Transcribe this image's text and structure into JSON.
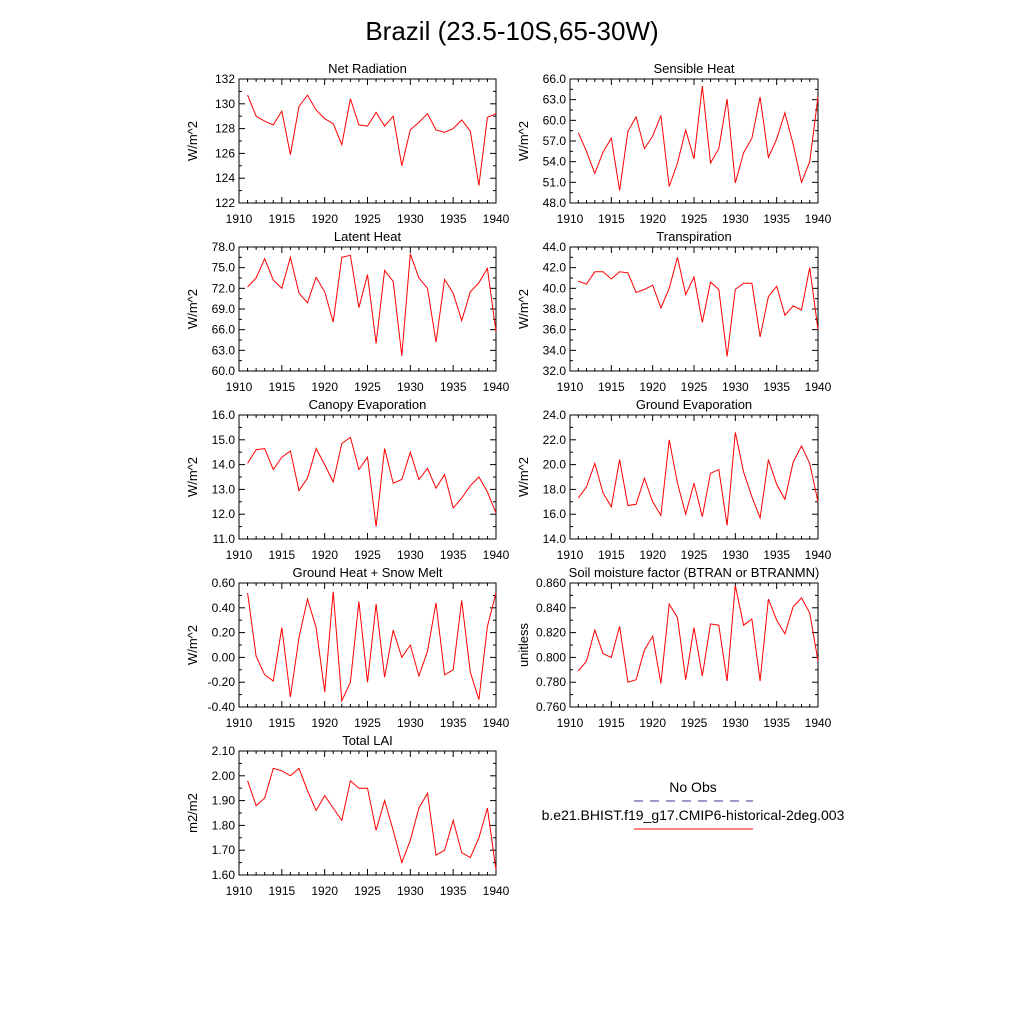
{
  "main_title": "Brazil (23.5-10S,65-30W)",
  "legend": {
    "items": [
      {
        "label": "No Obs",
        "color": "#3a3a9a",
        "dashed": true
      },
      {
        "label": "b.e21.BHIST.f19_g17.CMIP6-historical-2deg.003",
        "color": "#ff0000",
        "dashed": false
      }
    ]
  },
  "colors": {
    "series": "#ff0000",
    "axis": "#000000"
  },
  "chart_data": [
    {
      "type": "line",
      "title": "Net Radiation",
      "ylabel": "W/m^2",
      "xlim": [
        1910,
        1940
      ],
      "ylim": [
        122,
        132
      ],
      "xticks": [
        "1910",
        "1915",
        "1920",
        "1925",
        "1930",
        "1935",
        "1940"
      ],
      "yticks": [
        "122",
        "124",
        "126",
        "128",
        "130",
        "132"
      ],
      "x": [
        1911,
        1912,
        1913,
        1914,
        1915,
        1916,
        1917,
        1918,
        1919,
        1920,
        1921,
        1922,
        1923,
        1924,
        1925,
        1926,
        1927,
        1928,
        1929,
        1930,
        1931,
        1932,
        1933,
        1934,
        1935,
        1936,
        1937,
        1938,
        1939,
        1940
      ],
      "series": [
        {
          "values": [
            130.7,
            129.0,
            128.6,
            128.3,
            129.4,
            125.9,
            129.8,
            130.7,
            129.5,
            128.8,
            128.4,
            126.7,
            130.4,
            128.3,
            128.2,
            129.3,
            128.2,
            129.0,
            125.0,
            127.9,
            128.5,
            129.2,
            127.9,
            127.7,
            128.0,
            128.7,
            127.8,
            123.4,
            128.9,
            129.2
          ]
        }
      ]
    },
    {
      "type": "line",
      "title": "Sensible Heat",
      "ylabel": "W/m^2",
      "xlim": [
        1910,
        1940
      ],
      "ylim": [
        48,
        66
      ],
      "xticks": [
        "1910",
        "1915",
        "1920",
        "1925",
        "1930",
        "1935",
        "1940"
      ],
      "yticks": [
        "48.0",
        "51.0",
        "54.0",
        "57.0",
        "60.0",
        "63.0",
        "66.0"
      ],
      "x": [
        1911,
        1912,
        1913,
        1914,
        1915,
        1916,
        1917,
        1918,
        1919,
        1920,
        1921,
        1922,
        1923,
        1924,
        1925,
        1926,
        1927,
        1928,
        1929,
        1930,
        1931,
        1932,
        1933,
        1934,
        1935,
        1936,
        1937,
        1938,
        1939,
        1940
      ],
      "series": [
        {
          "values": [
            58.2,
            55.5,
            52.3,
            55.4,
            57.4,
            49.8,
            58.4,
            60.5,
            55.9,
            57.7,
            60.7,
            50.4,
            53.8,
            58.6,
            54.4,
            65.0,
            53.8,
            55.9,
            63.1,
            50.9,
            55.3,
            57.4,
            63.4,
            54.6,
            57.3,
            61.1,
            56.5,
            51.0,
            54.0,
            63.4
          ]
        }
      ]
    },
    {
      "type": "line",
      "title": "Latent Heat",
      "ylabel": "W/m^2",
      "xlim": [
        1910,
        1940
      ],
      "ylim": [
        60,
        78
      ],
      "xticks": [
        "1910",
        "1915",
        "1920",
        "1925",
        "1930",
        "1935",
        "1940"
      ],
      "yticks": [
        "60.0",
        "63.0",
        "66.0",
        "69.0",
        "72.0",
        "75.0",
        "78.0"
      ],
      "x": [
        1911,
        1912,
        1913,
        1914,
        1915,
        1916,
        1917,
        1918,
        1919,
        1920,
        1921,
        1922,
        1923,
        1924,
        1925,
        1926,
        1927,
        1928,
        1929,
        1930,
        1931,
        1932,
        1933,
        1934,
        1935,
        1936,
        1937,
        1938,
        1939,
        1940
      ],
      "series": [
        {
          "values": [
            72.2,
            73.5,
            76.3,
            73.2,
            72.0,
            76.5,
            71.3,
            69.9,
            73.6,
            71.5,
            67.1,
            76.5,
            76.8,
            69.2,
            74.0,
            64.0,
            74.6,
            73.0,
            62.2,
            77.0,
            73.5,
            72.0,
            64.2,
            73.3,
            71.3,
            67.3,
            71.5,
            72.8,
            74.9,
            65.7
          ]
        }
      ]
    },
    {
      "type": "line",
      "title": "Transpiration",
      "ylabel": "W/m^2",
      "xlim": [
        1910,
        1940
      ],
      "ylim": [
        32,
        44
      ],
      "xticks": [
        "1910",
        "1915",
        "1920",
        "1925",
        "1930",
        "1935",
        "1940"
      ],
      "yticks": [
        "32.0",
        "34.0",
        "36.0",
        "38.0",
        "40.0",
        "42.0",
        "44.0"
      ],
      "x": [
        1911,
        1912,
        1913,
        1914,
        1915,
        1916,
        1917,
        1918,
        1919,
        1920,
        1921,
        1922,
        1923,
        1924,
        1925,
        1926,
        1927,
        1928,
        1929,
        1930,
        1931,
        1932,
        1933,
        1934,
        1935,
        1936,
        1937,
        1938,
        1939,
        1940
      ],
      "series": [
        {
          "values": [
            40.7,
            40.4,
            41.6,
            41.6,
            40.9,
            41.6,
            41.5,
            39.6,
            39.9,
            40.3,
            38.1,
            40.0,
            43.0,
            39.4,
            41.1,
            36.7,
            40.6,
            39.9,
            33.4,
            39.9,
            40.5,
            40.5,
            35.3,
            39.2,
            40.2,
            37.4,
            38.3,
            37.9,
            42.0,
            36.0
          ]
        }
      ]
    },
    {
      "type": "line",
      "title": "Canopy Evaporation",
      "ylabel": "W/m^2",
      "xlim": [
        1910,
        1940
      ],
      "ylim": [
        11,
        16
      ],
      "xticks": [
        "1910",
        "1915",
        "1920",
        "1925",
        "1930",
        "1935",
        "1940"
      ],
      "yticks": [
        "11.0",
        "12.0",
        "13.0",
        "14.0",
        "15.0",
        "16.0"
      ],
      "x": [
        1911,
        1912,
        1913,
        1914,
        1915,
        1916,
        1917,
        1918,
        1919,
        1920,
        1921,
        1922,
        1923,
        1924,
        1925,
        1926,
        1927,
        1928,
        1929,
        1930,
        1931,
        1932,
        1933,
        1934,
        1935,
        1936,
        1937,
        1938,
        1939,
        1940
      ],
      "series": [
        {
          "values": [
            14.05,
            14.6,
            14.65,
            13.8,
            14.3,
            14.55,
            12.95,
            13.45,
            14.65,
            14.0,
            13.3,
            14.85,
            15.1,
            13.8,
            14.3,
            11.5,
            14.65,
            13.25,
            13.4,
            14.5,
            13.4,
            13.85,
            13.05,
            13.6,
            12.25,
            12.65,
            13.15,
            13.5,
            12.9,
            12.05
          ]
        }
      ]
    },
    {
      "type": "line",
      "title": "Ground Evaporation",
      "ylabel": "W/m^2",
      "xlim": [
        1910,
        1940
      ],
      "ylim": [
        14,
        24
      ],
      "xticks": [
        "1910",
        "1915",
        "1920",
        "1925",
        "1930",
        "1935",
        "1940"
      ],
      "yticks": [
        "14.0",
        "16.0",
        "18.0",
        "20.0",
        "22.0",
        "24.0"
      ],
      "x": [
        1911,
        1912,
        1913,
        1914,
        1915,
        1916,
        1917,
        1918,
        1919,
        1920,
        1921,
        1922,
        1923,
        1924,
        1925,
        1926,
        1927,
        1928,
        1929,
        1930,
        1931,
        1932,
        1933,
        1934,
        1935,
        1936,
        1937,
        1938,
        1939,
        1940
      ],
      "series": [
        {
          "values": [
            17.3,
            18.2,
            20.1,
            17.7,
            16.6,
            20.4,
            16.7,
            16.8,
            18.9,
            17.0,
            15.9,
            22.0,
            18.5,
            16.0,
            18.5,
            15.8,
            19.3,
            19.6,
            15.1,
            22.6,
            19.4,
            17.4,
            15.7,
            20.4,
            18.4,
            17.2,
            20.2,
            21.5,
            20.1,
            17.0
          ]
        }
      ]
    },
    {
      "type": "line",
      "title": "Ground Heat + Snow Melt",
      "ylabel": "W/m^2",
      "xlim": [
        1910,
        1940
      ],
      "ylim": [
        -0.4,
        0.6
      ],
      "xticks": [
        "1910",
        "1915",
        "1920",
        "1925",
        "1930",
        "1935",
        "1940"
      ],
      "yticks": [
        "-0.40",
        "-0.20",
        "0.00",
        "0.20",
        "0.40",
        "0.60"
      ],
      "x": [
        1911,
        1912,
        1913,
        1914,
        1915,
        1916,
        1917,
        1918,
        1919,
        1920,
        1921,
        1922,
        1923,
        1924,
        1925,
        1926,
        1927,
        1928,
        1929,
        1930,
        1931,
        1932,
        1933,
        1934,
        1935,
        1936,
        1937,
        1938,
        1939,
        1940
      ],
      "series": [
        {
          "values": [
            0.52,
            0.01,
            -0.14,
            -0.19,
            0.24,
            -0.32,
            0.16,
            0.47,
            0.24,
            -0.28,
            0.53,
            -0.35,
            -0.2,
            0.45,
            -0.2,
            0.43,
            -0.16,
            0.22,
            0.0,
            0.1,
            -0.15,
            0.05,
            0.44,
            -0.14,
            -0.1,
            0.46,
            -0.12,
            -0.34,
            0.25,
            0.52
          ]
        }
      ]
    },
    {
      "type": "line",
      "title": "Soil moisture factor (BTRAN or BTRANMN)",
      "ylabel": "unitless",
      "xlim": [
        1910,
        1940
      ],
      "ylim": [
        0.76,
        0.86
      ],
      "xticks": [
        "1910",
        "1915",
        "1920",
        "1925",
        "1930",
        "1935",
        "1940"
      ],
      "yticks": [
        "0.760",
        "0.780",
        "0.800",
        "0.820",
        "0.840",
        "0.860"
      ],
      "x": [
        1911,
        1912,
        1913,
        1914,
        1915,
        1916,
        1917,
        1918,
        1919,
        1920,
        1921,
        1922,
        1923,
        1924,
        1925,
        1926,
        1927,
        1928,
        1929,
        1930,
        1931,
        1932,
        1933,
        1934,
        1935,
        1936,
        1937,
        1938,
        1939,
        1940
      ],
      "series": [
        {
          "values": [
            0.789,
            0.797,
            0.822,
            0.803,
            0.8,
            0.825,
            0.78,
            0.782,
            0.806,
            0.817,
            0.779,
            0.843,
            0.832,
            0.782,
            0.824,
            0.785,
            0.827,
            0.826,
            0.781,
            0.858,
            0.826,
            0.831,
            0.781,
            0.847,
            0.83,
            0.819,
            0.841,
            0.848,
            0.836,
            0.797
          ]
        }
      ]
    },
    {
      "type": "line",
      "title": "Total LAI",
      "ylabel": "m2/m2",
      "xlim": [
        1910,
        1940
      ],
      "ylim": [
        1.6,
        2.1
      ],
      "xticks": [
        "1910",
        "1915",
        "1920",
        "1925",
        "1930",
        "1935",
        "1940"
      ],
      "yticks": [
        "1.60",
        "1.70",
        "1.80",
        "1.90",
        "2.00",
        "2.10"
      ],
      "x": [
        1911,
        1912,
        1913,
        1914,
        1915,
        1916,
        1917,
        1918,
        1919,
        1920,
        1921,
        1922,
        1923,
        1924,
        1925,
        1926,
        1927,
        1928,
        1929,
        1930,
        1931,
        1932,
        1933,
        1934,
        1935,
        1936,
        1937,
        1938,
        1939,
        1940
      ],
      "series": [
        {
          "values": [
            1.98,
            1.88,
            1.91,
            2.03,
            2.02,
            2.0,
            2.03,
            1.94,
            1.86,
            1.92,
            1.87,
            1.82,
            1.98,
            1.95,
            1.95,
            1.78,
            1.9,
            1.78,
            1.65,
            1.74,
            1.87,
            1.93,
            1.68,
            1.7,
            1.82,
            1.69,
            1.67,
            1.75,
            1.87,
            1.62
          ]
        }
      ]
    }
  ]
}
